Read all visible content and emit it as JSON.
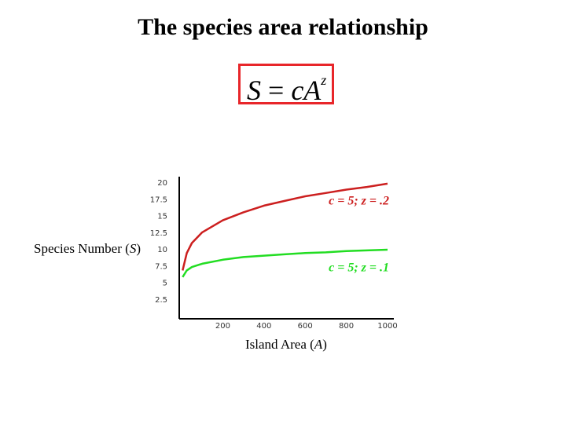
{
  "title": "The species area relationship",
  "formula": {
    "lhs": "S",
    "eq": " = ",
    "rhs": "cA",
    "exp": "z"
  },
  "ylabel": {
    "text": "Species Number (",
    "var": "S",
    "close": ")"
  },
  "xlabel": {
    "text": "Island Area (",
    "var": "A",
    "close": ")"
  },
  "colors": {
    "box": "#e8262a",
    "red_series": "#cc1f1f",
    "green_series": "#22dd22",
    "axis": "#000000"
  },
  "chart_data": {
    "type": "line",
    "xlim": [
      0,
      1000
    ],
    "ylim": [
      0,
      20
    ],
    "x_ticks": [
      "200",
      "400",
      "600",
      "800",
      "1000"
    ],
    "y_ticks": [
      "2.5",
      "5",
      "7.5",
      "10",
      "12.5",
      "15",
      "17.5",
      "20"
    ],
    "grid": false,
    "series": [
      {
        "name": "c = 5; z = .2",
        "c": 5,
        "z": 0.2,
        "color": "#cc1f1f",
        "x": [
          5,
          25,
          50,
          100,
          200,
          300,
          400,
          500,
          600,
          700,
          800,
          900,
          1000
        ],
        "values": [
          6.9,
          9.5,
          11.0,
          12.6,
          14.4,
          15.6,
          16.6,
          17.3,
          18.0,
          18.5,
          19.0,
          19.4,
          19.9
        ]
      },
      {
        "name": "c = 5; z = .1",
        "c": 5,
        "z": 0.1,
        "color": "#22dd22",
        "x": [
          5,
          25,
          50,
          100,
          200,
          300,
          400,
          500,
          600,
          700,
          800,
          900,
          1000
        ],
        "values": [
          5.9,
          6.9,
          7.4,
          7.9,
          8.5,
          8.9,
          9.1,
          9.3,
          9.5,
          9.6,
          9.8,
          9.9,
          10.0
        ]
      }
    ]
  }
}
